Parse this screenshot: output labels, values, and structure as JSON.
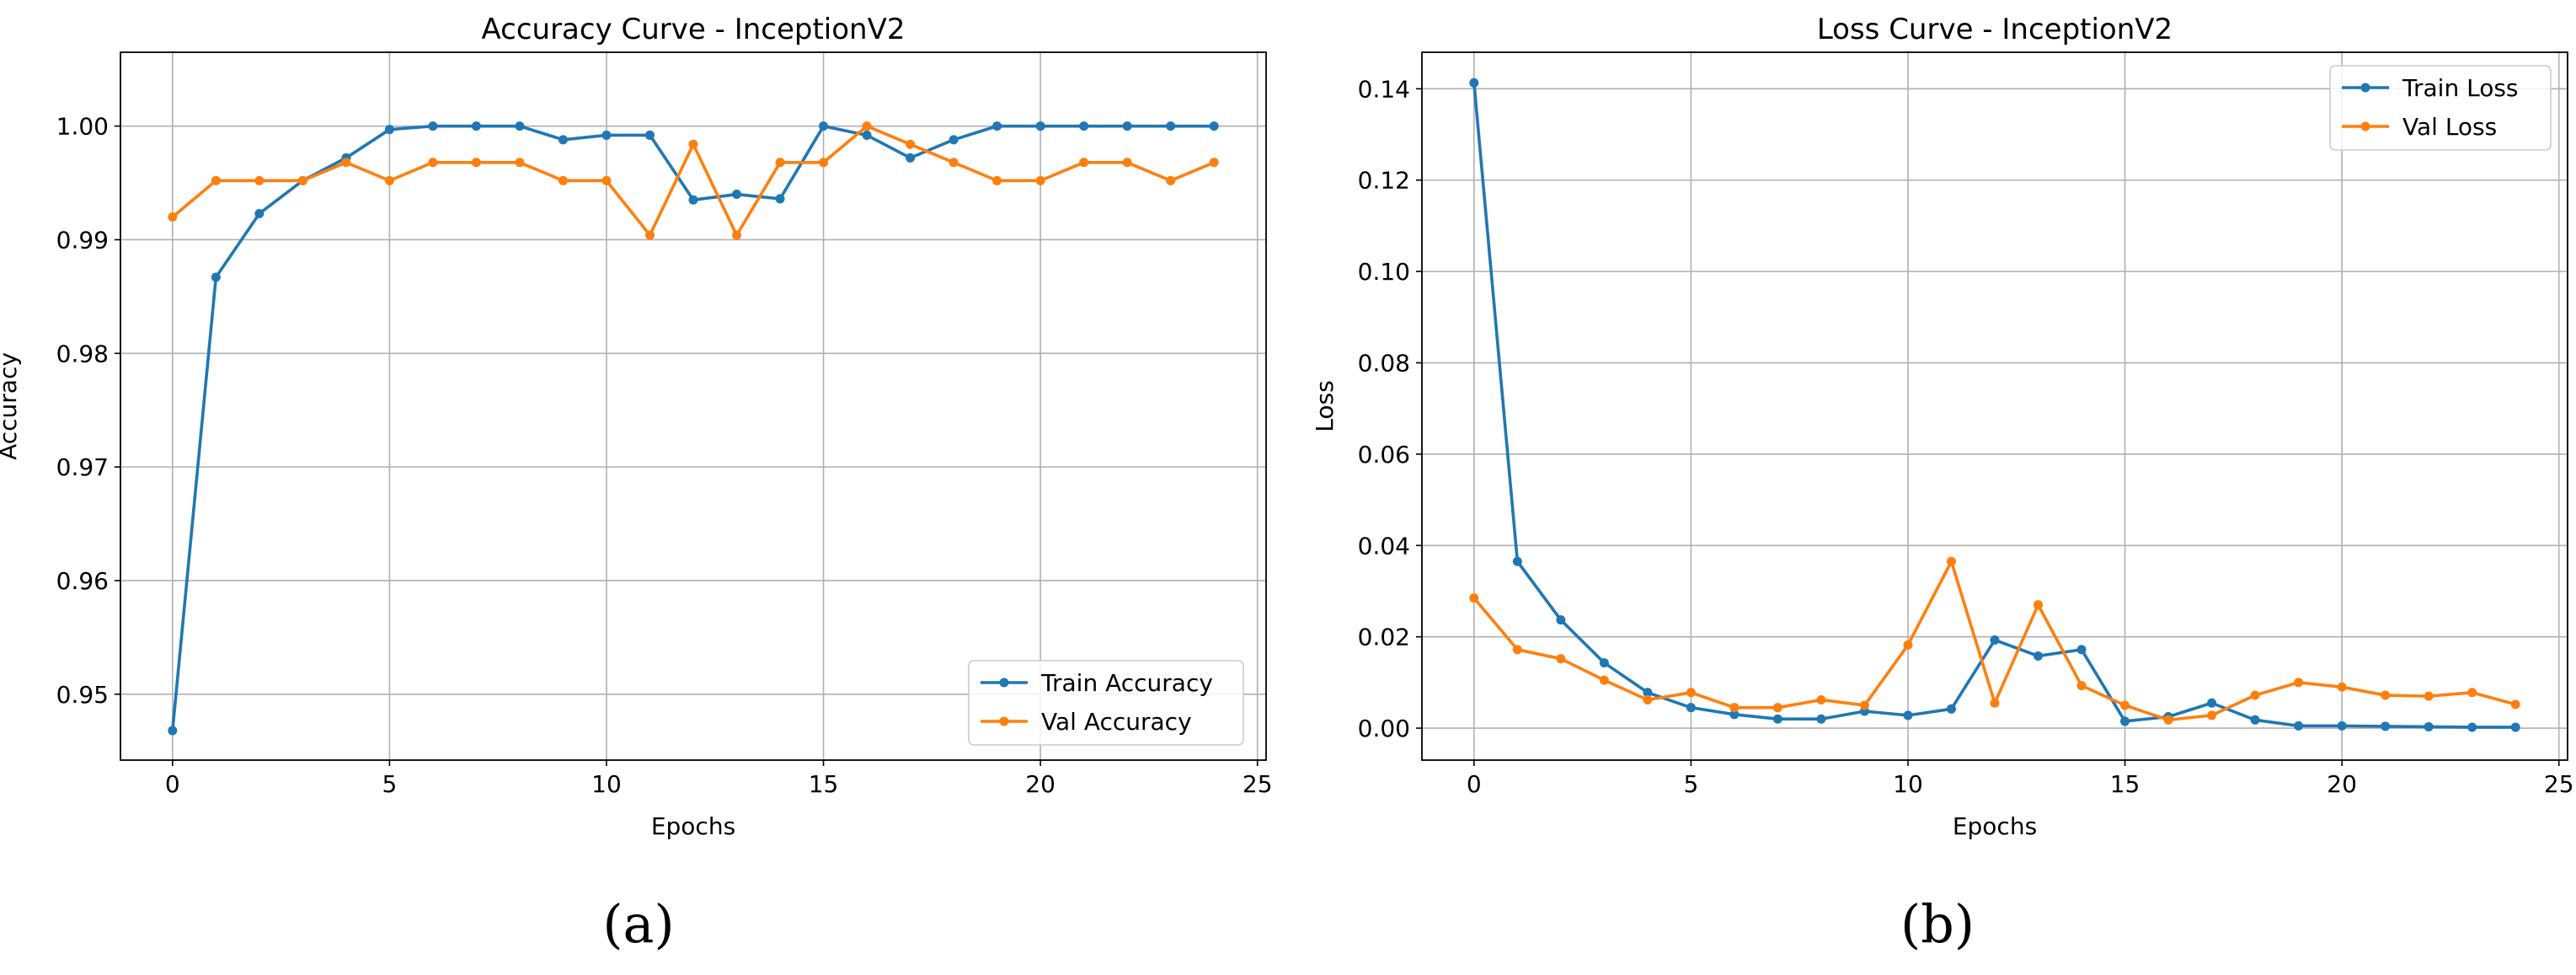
{
  "chart_data": [
    {
      "type": "line",
      "title": "Accuracy Curve - InceptionV2",
      "xlabel": "Epochs",
      "ylabel": "Accuracy",
      "xlim": [
        -1.2,
        25.2
      ],
      "ylim": [
        0.9442,
        1.0065
      ],
      "xticks": [
        0,
        5,
        10,
        15,
        20,
        25
      ],
      "yticks": [
        0.95,
        0.96,
        0.97,
        0.98,
        0.99,
        1.0
      ],
      "ytick_labels": [
        "0.95",
        "0.96",
        "0.97",
        "0.98",
        "0.99",
        "1.00"
      ],
      "grid": true,
      "legend_location": "lower-right",
      "x": [
        0,
        1,
        2,
        3,
        4,
        5,
        6,
        7,
        8,
        9,
        10,
        11,
        12,
        13,
        14,
        15,
        16,
        17,
        18,
        19,
        20,
        21,
        22,
        23,
        24
      ],
      "series": [
        {
          "name": "Train Accuracy",
          "color": "#1f77b4",
          "values": [
            0.9468,
            0.9867,
            0.9923,
            0.9952,
            0.9972,
            0.9997,
            1.0,
            1.0,
            1.0,
            0.9988,
            0.9992,
            0.9992,
            0.9935,
            0.994,
            0.9936,
            1.0,
            0.9992,
            0.9972,
            0.9988,
            1.0,
            1.0,
            1.0,
            1.0,
            1.0,
            1.0
          ]
        },
        {
          "name": "Val Accuracy",
          "color": "#ff7f0e",
          "values": [
            0.992,
            0.9952,
            0.9952,
            0.9952,
            0.9968,
            0.9952,
            0.9968,
            0.9968,
            0.9968,
            0.9952,
            0.9952,
            0.9904,
            0.9984,
            0.9904,
            0.9968,
            0.9968,
            1.0,
            0.9984,
            0.9968,
            0.9952,
            0.9952,
            0.9968,
            0.9968,
            0.9952,
            0.9968
          ]
        }
      ]
    },
    {
      "type": "line",
      "title": "Loss Curve - InceptionV2",
      "xlabel": "Epochs",
      "ylabel": "Loss",
      "xlim": [
        -1.2,
        25.2
      ],
      "ylim": [
        -0.007,
        0.148
      ],
      "xticks": [
        0,
        5,
        10,
        15,
        20,
        25
      ],
      "yticks": [
        0.0,
        0.02,
        0.04,
        0.06,
        0.08,
        0.1,
        0.12,
        0.14
      ],
      "ytick_labels": [
        "0.00",
        "0.02",
        "0.04",
        "0.06",
        "0.08",
        "0.10",
        "0.12",
        "0.14"
      ],
      "grid": true,
      "legend_location": "upper-right",
      "x": [
        0,
        1,
        2,
        3,
        4,
        5,
        6,
        7,
        8,
        9,
        10,
        11,
        12,
        13,
        14,
        15,
        16,
        17,
        18,
        19,
        20,
        21,
        22,
        23,
        24
      ],
      "series": [
        {
          "name": "Train Loss",
          "color": "#1f77b4",
          "values": [
            0.1413,
            0.0365,
            0.0237,
            0.0143,
            0.0078,
            0.0045,
            0.003,
            0.002,
            0.002,
            0.0037,
            0.0028,
            0.0042,
            0.0193,
            0.0158,
            0.0172,
            0.0015,
            0.0025,
            0.0055,
            0.0018,
            0.0005,
            0.0005,
            0.0004,
            0.0003,
            0.0002,
            0.0002
          ]
        },
        {
          "name": "Val Loss",
          "color": "#ff7f0e",
          "values": [
            0.0285,
            0.0172,
            0.0152,
            0.0105,
            0.0062,
            0.0078,
            0.0045,
            0.0045,
            0.0062,
            0.005,
            0.0182,
            0.0365,
            0.0055,
            0.027,
            0.0093,
            0.005,
            0.0018,
            0.0028,
            0.0072,
            0.01,
            0.009,
            0.0072,
            0.007,
            0.0078,
            0.0052
          ]
        }
      ]
    }
  ],
  "captions": [
    "(a)",
    "(b)"
  ]
}
